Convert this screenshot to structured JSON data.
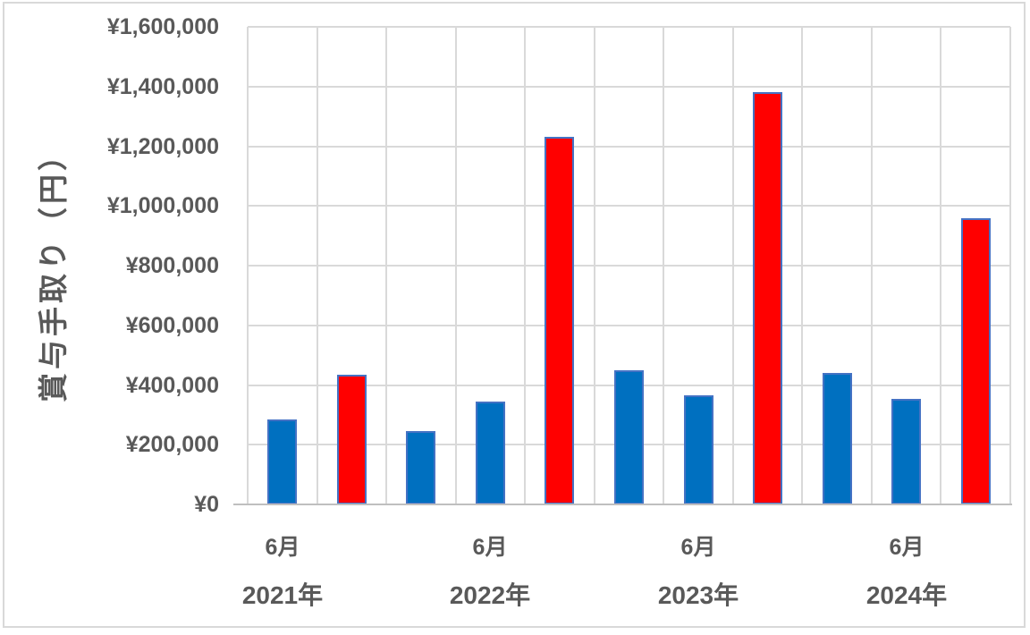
{
  "chart_data": {
    "type": "bar",
    "title": "",
    "ylabel": "賞与手取り（円）",
    "xlabel": "",
    "ylim": [
      0,
      1600000
    ],
    "ytick_step": 200000,
    "ytick_labels": [
      "¥0",
      "¥200,000",
      "¥400,000",
      "¥600,000",
      "¥800,000",
      "¥1,000,000",
      "¥1,200,000",
      "¥1,400,000",
      "¥1,600,000"
    ],
    "num_slots": 11,
    "grid": true,
    "legend": "none",
    "bars": [
      {
        "slot": 0,
        "value": 285000,
        "color_key": "blue"
      },
      {
        "slot": 1,
        "value": 435000,
        "color_key": "red"
      },
      {
        "slot": 2,
        "value": 245000,
        "color_key": "blue"
      },
      {
        "slot": 3,
        "value": 345000,
        "color_key": "blue"
      },
      {
        "slot": 4,
        "value": 1230000,
        "color_key": "red"
      },
      {
        "slot": 5,
        "value": 450000,
        "color_key": "blue"
      },
      {
        "slot": 6,
        "value": 365000,
        "color_key": "blue"
      },
      {
        "slot": 7,
        "value": 1380000,
        "color_key": "red"
      },
      {
        "slot": 8,
        "value": 440000,
        "color_key": "blue"
      },
      {
        "slot": 9,
        "value": 355000,
        "color_key": "blue"
      },
      {
        "slot": 10,
        "value": 960000,
        "color_key": "red"
      }
    ],
    "x_month_ticks": [
      {
        "slot": 0,
        "label": "6月"
      },
      {
        "slot": 3,
        "label": "6月"
      },
      {
        "slot": 6,
        "label": "6月"
      },
      {
        "slot": 9,
        "label": "6月"
      }
    ],
    "x_year_ticks": [
      {
        "slot": 0,
        "label": "2021年"
      },
      {
        "slot": 3,
        "label": "2022年"
      },
      {
        "slot": 6,
        "label": "2023年"
      },
      {
        "slot": 9,
        "label": "2024年"
      }
    ],
    "colors": {
      "blue_fill": "#0070C0",
      "red_fill": "#FF0000",
      "bar_border": "#4472C4",
      "gridline": "#D9D9D9",
      "axis_line": "#BFBFBF",
      "frame_border": "#D9D9D9",
      "text": "#595959",
      "background": "#FFFFFF"
    }
  }
}
